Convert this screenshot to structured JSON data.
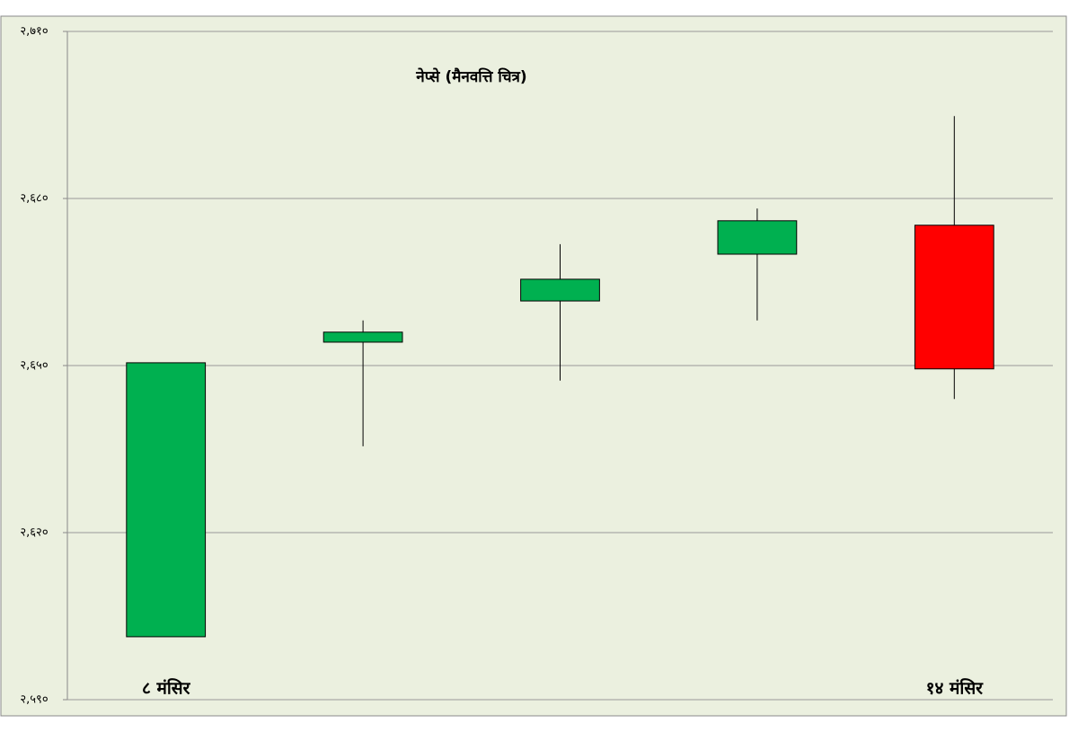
{
  "chart_data": {
    "type": "candlestick",
    "title": "नेप्से (मैनवत्ति चित्र)",
    "categories": [
      "८ मंसिर",
      null,
      null,
      null,
      "१४ मंसिर"
    ],
    "open": [
      2601.3,
      2654.2,
      2661.6,
      2670.0,
      2675.2
    ],
    "high": [
      2650.5,
      2658.1,
      2671.8,
      2678.2,
      2694.8
    ],
    "low": [
      2601.3,
      2635.5,
      2647.3,
      2658.1,
      2644.0
    ],
    "close": [
      2650.5,
      2656.0,
      2665.5,
      2676.0,
      2649.4
    ],
    "up_color": "#00b050",
    "down_color": "#ff0000",
    "ylim": [
      2590,
      2710
    ],
    "yticks": [
      {
        "value": 2590,
        "label": "२,५९०"
      },
      {
        "value": 2620,
        "label": "२,६२०"
      },
      {
        "value": 2650,
        "label": "२,६५०"
      },
      {
        "value": 2680,
        "label": "२,६८०"
      },
      {
        "value": 2710,
        "label": "२,७१०"
      }
    ],
    "grid": true
  }
}
